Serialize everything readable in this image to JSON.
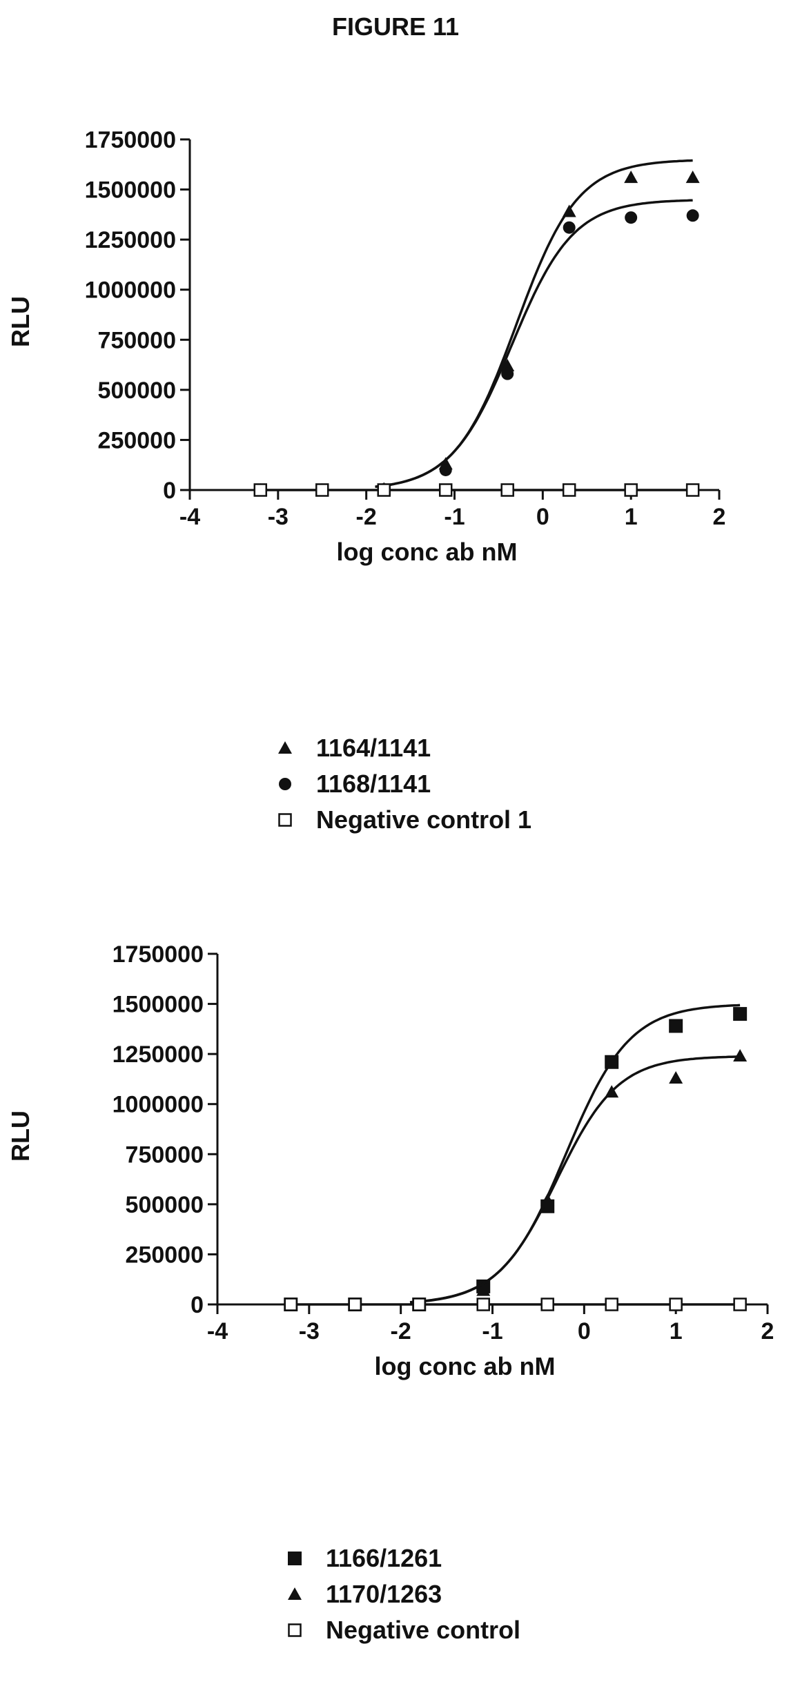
{
  "figure_title": "FIGURE 11",
  "chart_data": [
    {
      "type": "scatter",
      "title": "",
      "xlabel": "log conc ab nM",
      "ylabel": "RLU",
      "xlim": [
        -4,
        2
      ],
      "ylim": [
        0,
        1750000
      ],
      "xticks": [
        -4,
        -3,
        -2,
        -1,
        0,
        1,
        2
      ],
      "yticks": [
        0,
        250000,
        500000,
        750000,
        1000000,
        1250000,
        1500000,
        1750000
      ],
      "grid": false,
      "legend_position": "below",
      "series": [
        {
          "name": "1164/1141",
          "marker": "triangle",
          "x": [
            -3.2,
            -2.5,
            -1.8,
            -1.1,
            -0.4,
            0.3,
            1.0,
            1.7
          ],
          "y": [
            0,
            0,
            5000,
            130000,
            620000,
            1390000,
            1560000,
            1560000
          ],
          "fit": {
            "bottom": 0,
            "top": 1650000,
            "logEC50": -0.3,
            "hill": 1.25
          }
        },
        {
          "name": "1168/1141",
          "marker": "circle",
          "x": [
            -3.2,
            -2.5,
            -1.8,
            -1.1,
            -0.4,
            0.3,
            1.0,
            1.7
          ],
          "y": [
            0,
            0,
            3000,
            100000,
            580000,
            1310000,
            1360000,
            1370000
          ],
          "fit": {
            "bottom": 0,
            "top": 1450000,
            "logEC50": -0.35,
            "hill": 1.25
          }
        },
        {
          "name": "Negative control 1",
          "marker": "open-square",
          "x": [
            -3.2,
            -2.5,
            -1.8,
            -1.1,
            -0.4,
            0.3,
            1.0,
            1.7
          ],
          "y": [
            0,
            0,
            0,
            0,
            0,
            0,
            0,
            0
          ],
          "fit": {
            "flat": 0
          }
        }
      ]
    },
    {
      "type": "scatter",
      "title": "",
      "xlabel": "log conc ab nM",
      "ylabel": "RLU",
      "xlim": [
        -4,
        2
      ],
      "ylim": [
        0,
        1750000
      ],
      "xticks": [
        -4,
        -3,
        -2,
        -1,
        0,
        1,
        2
      ],
      "yticks": [
        0,
        250000,
        500000,
        750000,
        1000000,
        1250000,
        1500000,
        1750000
      ],
      "grid": false,
      "legend_position": "below",
      "series": [
        {
          "name": "1166/1261",
          "marker": "square",
          "x": [
            -3.2,
            -2.5,
            -1.8,
            -1.1,
            -0.4,
            0.3,
            1.0,
            1.7
          ],
          "y": [
            0,
            0,
            0,
            90000,
            490000,
            1210000,
            1390000,
            1450000
          ],
          "fit": {
            "bottom": 0,
            "top": 1500000,
            "logEC50": -0.2,
            "hill": 1.25
          }
        },
        {
          "name": "1170/1263",
          "marker": "triangle",
          "x": [
            -3.2,
            -2.5,
            -1.8,
            -1.1,
            -0.4,
            0.3,
            1.0,
            1.7
          ],
          "y": [
            0,
            0,
            0,
            70000,
            520000,
            1060000,
            1130000,
            1240000
          ],
          "fit": {
            "bottom": 0,
            "top": 1240000,
            "logEC50": -0.3,
            "hill": 1.3
          }
        },
        {
          "name": "Negative control",
          "marker": "open-square",
          "x": [
            -3.2,
            -2.5,
            -1.8,
            -1.1,
            -0.4,
            0.3,
            1.0,
            1.7
          ],
          "y": [
            0,
            0,
            0,
            0,
            0,
            0,
            0,
            0
          ],
          "fit": {
            "flat": 0
          }
        }
      ]
    }
  ],
  "legends": [
    {
      "items": [
        {
          "marker": "triangle",
          "label": "1164/1141"
        },
        {
          "marker": "circle",
          "label": "1168/1141"
        },
        {
          "marker": "open-square",
          "label": "Negative control 1"
        }
      ]
    },
    {
      "items": [
        {
          "marker": "square",
          "label": "1166/1261"
        },
        {
          "marker": "triangle",
          "label": "1170/1263"
        },
        {
          "marker": "open-square",
          "label": "Negative control"
        }
      ]
    }
  ]
}
